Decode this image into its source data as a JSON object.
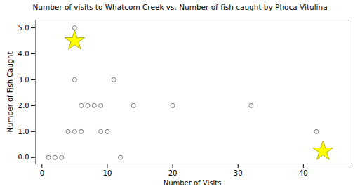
{
  "chart_data": {
    "type": "scatter",
    "title": "Number of visits to Whatcom Creek vs. Number of fish caught by Phoca Vitulina",
    "xlabel": "Number of Visits",
    "ylabel": "Number of Fish Caught",
    "series": [
      {
        "x": [
          1,
          2,
          3,
          4,
          5,
          6,
          7,
          8,
          9,
          10,
          11,
          12,
          14,
          20,
          32,
          42
        ],
        "values": [
          0,
          0,
          0,
          1,
          3,
          1,
          2,
          2,
          1,
          1,
          3,
          0,
          2,
          2,
          2,
          1
        ],
        "color": "#777777",
        "marker": "circle"
      },
      {
        "x": [
          5,
          5,
          6,
          9
        ],
        "values": [
          5,
          1,
          2,
          2
        ],
        "color": "#777777",
        "marker": "circle"
      },
      {
        "x": [
          5,
          43
        ],
        "values": [
          4.5,
          0.25
        ],
        "color": "yellow",
        "marker": "star"
      }
    ],
    "xlim": [
      -1,
      47
    ],
    "ylim": [
      -0.25,
      5.3
    ],
    "xticks": [
      0,
      10,
      20,
      30,
      40
    ],
    "yticks": [
      0,
      1,
      2,
      3,
      4,
      5
    ],
    "grid": false
  }
}
